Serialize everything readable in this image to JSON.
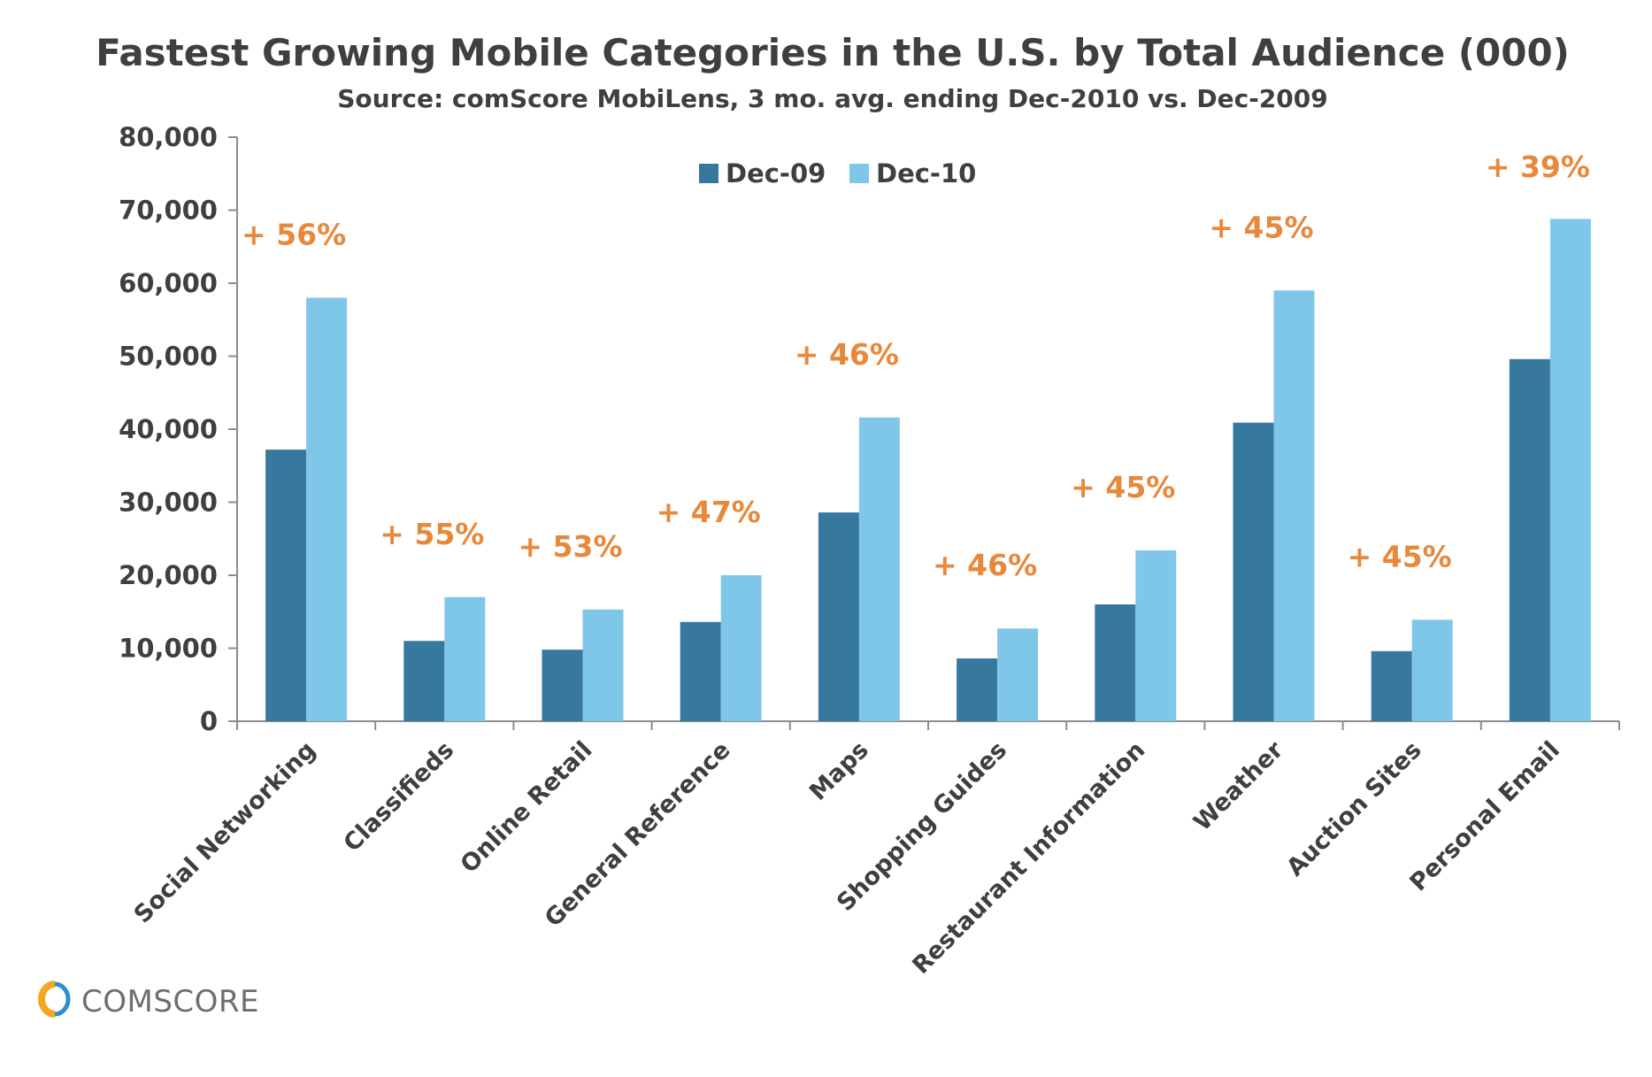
{
  "chart_data": {
    "type": "bar",
    "title": "Fastest Growing Mobile Categories in the U.S. by Total Audience (000)",
    "subtitle": "Source: comScore MobiLens, 3 mo. avg. ending Dec-2010 vs. Dec-2009",
    "xlabel": "",
    "ylabel": "",
    "ylim": [
      0,
      80000
    ],
    "yticks": [
      "0",
      "10,000",
      "20,000",
      "30,000",
      "40,000",
      "50,000",
      "60,000",
      "70,000",
      "80,000"
    ],
    "ytick_values": [
      0,
      10000,
      20000,
      30000,
      40000,
      50000,
      60000,
      70000,
      80000
    ],
    "grid": false,
    "legend_position": "top-center",
    "categories": [
      "Social Networking",
      "Classifieds",
      "Online Retail",
      "General Reference",
      "Maps",
      "Shopping Guides",
      "Restaurant Information",
      "Weather",
      "Auction Sites",
      "Personal Email"
    ],
    "series": [
      {
        "name": "Dec-09",
        "color": "#37789e",
        "values": [
          37200,
          11000,
          9800,
          13600,
          28600,
          8600,
          16000,
          40900,
          9600,
          49600
        ]
      },
      {
        "name": "Dec-10",
        "color": "#7fc7e9",
        "values": [
          58000,
          17000,
          15300,
          20000,
          41600,
          12700,
          23400,
          59000,
          13900,
          68800
        ]
      }
    ],
    "annotations": [
      "+ 56%",
      "+ 55%",
      "+ 53%",
      "+ 47%",
      "+ 46%",
      "+ 46%",
      "+ 45%",
      "+ 45%",
      "+ 45%",
      "+ 39%"
    ],
    "annotation_color": "#e8883a"
  },
  "brand": {
    "name": "comScore",
    "logo_text": "COMSCORE",
    "logo_colors": [
      "#f5a623",
      "#2d8fc9"
    ]
  }
}
